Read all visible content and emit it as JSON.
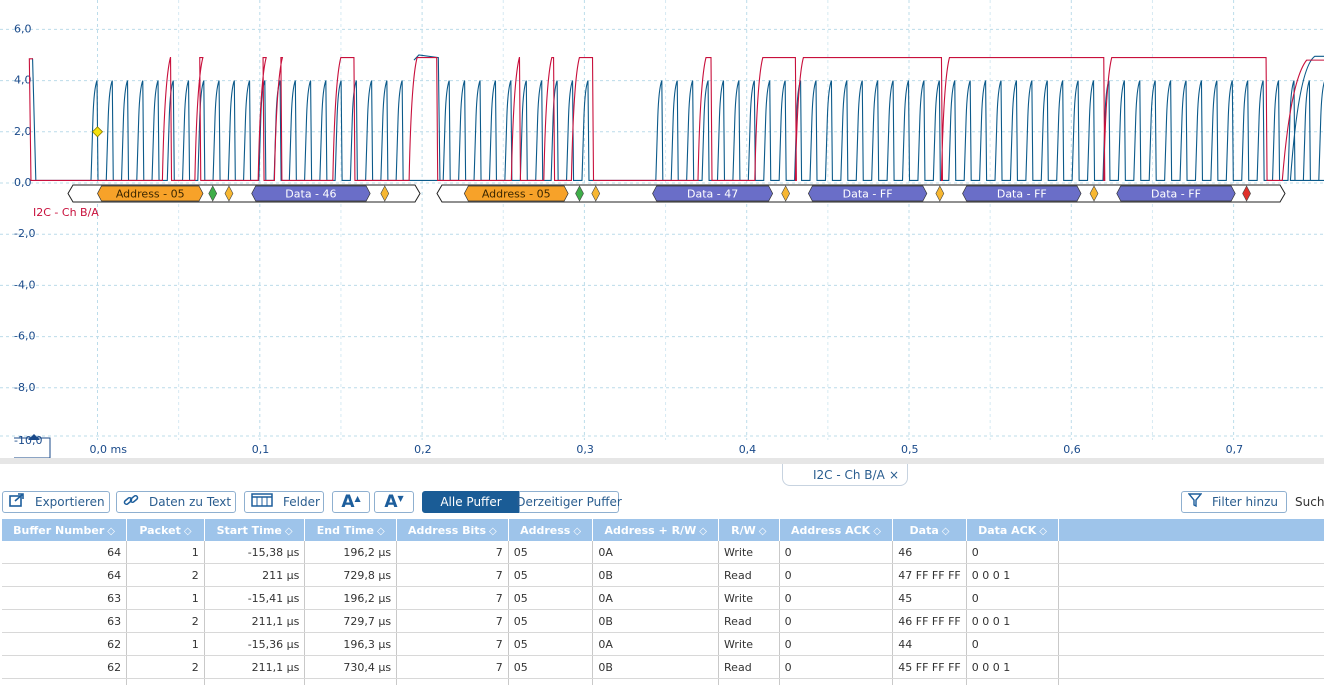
{
  "scope": {
    "y_ticks": [
      "6,0",
      "4,0",
      "2,0",
      "0,0",
      "-2,0",
      "-4,0",
      "-6,0",
      "-8,0",
      "-10,0"
    ],
    "x_ticks": [
      "0,0 ms",
      "0,1",
      "0,2",
      "0,3",
      "0,4",
      "0,5",
      "0,6",
      "0,7"
    ],
    "channel_label": "I2C - Ch B/A",
    "colors": {
      "scl": "#0c5a8a",
      "sda": "#c8103c",
      "grid": "#bcdcea",
      "address": "#f7a229",
      "data": "#6a6ec8"
    },
    "decode_segments": [
      {
        "kind": "address",
        "label": "Address - 05"
      },
      {
        "kind": "marker",
        "color": "green"
      },
      {
        "kind": "marker",
        "color": "yellow"
      },
      {
        "kind": "data",
        "label": "Data - 46"
      },
      {
        "kind": "marker",
        "color": "yellow"
      },
      {
        "kind": "address",
        "label": "Address - 05"
      },
      {
        "kind": "marker",
        "color": "green"
      },
      {
        "kind": "marker",
        "color": "yellow"
      },
      {
        "kind": "data",
        "label": "Data - 47"
      },
      {
        "kind": "marker",
        "color": "yellow"
      },
      {
        "kind": "data",
        "label": "Data - FF"
      },
      {
        "kind": "marker",
        "color": "yellow"
      },
      {
        "kind": "data",
        "label": "Data - FF"
      },
      {
        "kind": "marker",
        "color": "yellow"
      },
      {
        "kind": "data",
        "label": "Data - FF"
      },
      {
        "kind": "marker",
        "color": "red"
      }
    ]
  },
  "tab": {
    "label": "I2C - Ch B/A",
    "close": "×"
  },
  "toolbar": {
    "export": "Exportieren",
    "data_to_text": "Daten zu Text",
    "fields": "Felder",
    "font_up": "A",
    "font_down": "A",
    "all_buffers": "Alle Puffer",
    "current_buffer": "Derzeitiger Puffer",
    "add_filter": "Filter hinzu",
    "search": "Such"
  },
  "table": {
    "sort_glyph": "◇",
    "columns": [
      "Buffer Number",
      "Packet",
      "Start Time",
      "End Time",
      "Address Bits",
      "Address",
      "Address + R/W",
      "R/W",
      "Address ACK",
      "Data",
      "Data ACK"
    ],
    "rows": [
      [
        "64",
        "1",
        "-15,38 µs",
        "196,2 µs",
        "7",
        "05",
        "0A",
        "Write",
        "0",
        "46",
        "0"
      ],
      [
        "64",
        "2",
        "211 µs",
        "729,8 µs",
        "7",
        "05",
        "0B",
        "Read",
        "0",
        "47 FF FF FF",
        "0 0 0 1"
      ],
      [
        "63",
        "1",
        "-15,41 µs",
        "196,2 µs",
        "7",
        "05",
        "0A",
        "Write",
        "0",
        "45",
        "0"
      ],
      [
        "63",
        "2",
        "211,1 µs",
        "729,7 µs",
        "7",
        "05",
        "0B",
        "Read",
        "0",
        "46 FF FF FF",
        "0 0 0 1"
      ],
      [
        "62",
        "1",
        "-15,36 µs",
        "196,3 µs",
        "7",
        "05",
        "0A",
        "Write",
        "0",
        "44",
        "0"
      ],
      [
        "62",
        "2",
        "211,1 µs",
        "730,4 µs",
        "7",
        "05",
        "0B",
        "Read",
        "0",
        "45 FF FF FF",
        "0 0 0 1"
      ],
      [
        "",
        "",
        "",
        "",
        "",
        "",
        "",
        "",
        "",
        "",
        ""
      ]
    ]
  }
}
